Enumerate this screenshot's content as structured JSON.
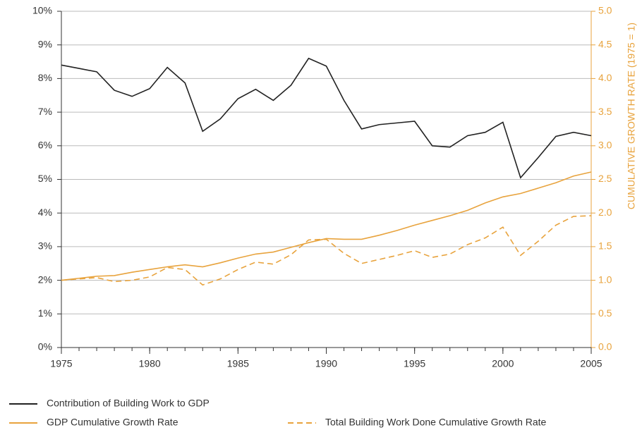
{
  "chart_data": {
    "type": "line",
    "x": [
      1975,
      1976,
      1977,
      1978,
      1979,
      1980,
      1981,
      1982,
      1983,
      1984,
      1985,
      1986,
      1987,
      1988,
      1989,
      1990,
      1991,
      1992,
      1993,
      1994,
      1995,
      1996,
      1997,
      1998,
      1999,
      2000,
      2001,
      2002,
      2003,
      2004,
      2005
    ],
    "xlim": [
      1975,
      2005
    ],
    "xticks": [
      1975,
      1980,
      1985,
      1990,
      1995,
      2000,
      2005
    ],
    "ylim": [
      0,
      10
    ],
    "yticks": [
      {
        "value": 0,
        "label": "0%"
      },
      {
        "value": 1,
        "label": "1%"
      },
      {
        "value": 2,
        "label": "2%"
      },
      {
        "value": 3,
        "label": "3%"
      },
      {
        "value": 4,
        "label": "4%"
      },
      {
        "value": 5,
        "label": "5%"
      },
      {
        "value": 6,
        "label": "6%"
      },
      {
        "value": 7,
        "label": "7%"
      },
      {
        "value": 8,
        "label": "8%"
      },
      {
        "value": 9,
        "label": "9%"
      },
      {
        "value": 10,
        "label": "10%"
      }
    ],
    "y2lim": [
      0,
      5
    ],
    "y2ticks": [
      {
        "value": 0,
        "label": "0.0"
      },
      {
        "value": 0.5,
        "label": "0.5"
      },
      {
        "value": 1,
        "label": "1.0"
      },
      {
        "value": 1.5,
        "label": "1.5"
      },
      {
        "value": 2,
        "label": "2.0"
      },
      {
        "value": 2.5,
        "label": "2.5"
      },
      {
        "value": 3,
        "label": "3.0"
      },
      {
        "value": 3.5,
        "label": "3.5"
      },
      {
        "value": 4,
        "label": "4.0"
      },
      {
        "value": 4.5,
        "label": "4.5"
      },
      {
        "value": 5,
        "label": "5.0"
      }
    ],
    "y2label": "CUMULATIVE GROWTH RATE (1975 = 1)",
    "grid": true,
    "series": [
      {
        "name": "Contribution of Building Work to GDP",
        "color": "#222222",
        "line_style": "solid",
        "values": [
          8.4,
          8.3,
          8.2,
          7.65,
          7.47,
          7.7,
          8.33,
          7.87,
          6.43,
          6.8,
          7.4,
          7.68,
          7.35,
          7.8,
          8.6,
          8.37,
          7.35,
          6.5,
          6.63,
          6.68,
          6.73,
          6.0,
          5.96,
          6.3,
          6.4,
          6.7,
          5.05,
          5.65,
          6.28,
          6.4,
          6.3
        ]
      },
      {
        "name": "GDP Cumulative Growth Rate",
        "color": "#e8a33d",
        "line_style": "solid",
        "axis": "y2",
        "values": [
          1.0,
          1.03,
          1.06,
          1.07,
          1.12,
          1.16,
          1.2,
          1.23,
          1.2,
          1.26,
          1.33,
          1.39,
          1.42,
          1.49,
          1.56,
          1.62,
          1.61,
          1.61,
          1.67,
          1.74,
          1.82,
          1.89,
          1.96,
          2.04,
          2.15,
          2.24,
          2.29,
          2.37,
          2.45,
          2.55,
          2.61
        ]
      },
      {
        "name": "Total Building Work Done Cumulative Growth Rate",
        "color": "#e8a33d",
        "line_style": "dashed",
        "axis": "y2",
        "values": [
          1.0,
          1.02,
          1.04,
          0.98,
          1.0,
          1.05,
          1.19,
          1.16,
          0.93,
          1.02,
          1.16,
          1.27,
          1.24,
          1.38,
          1.6,
          1.61,
          1.4,
          1.25,
          1.31,
          1.37,
          1.44,
          1.34,
          1.39,
          1.53,
          1.63,
          1.79,
          1.37,
          1.58,
          1.82,
          1.95,
          1.96
        ]
      }
    ]
  }
}
